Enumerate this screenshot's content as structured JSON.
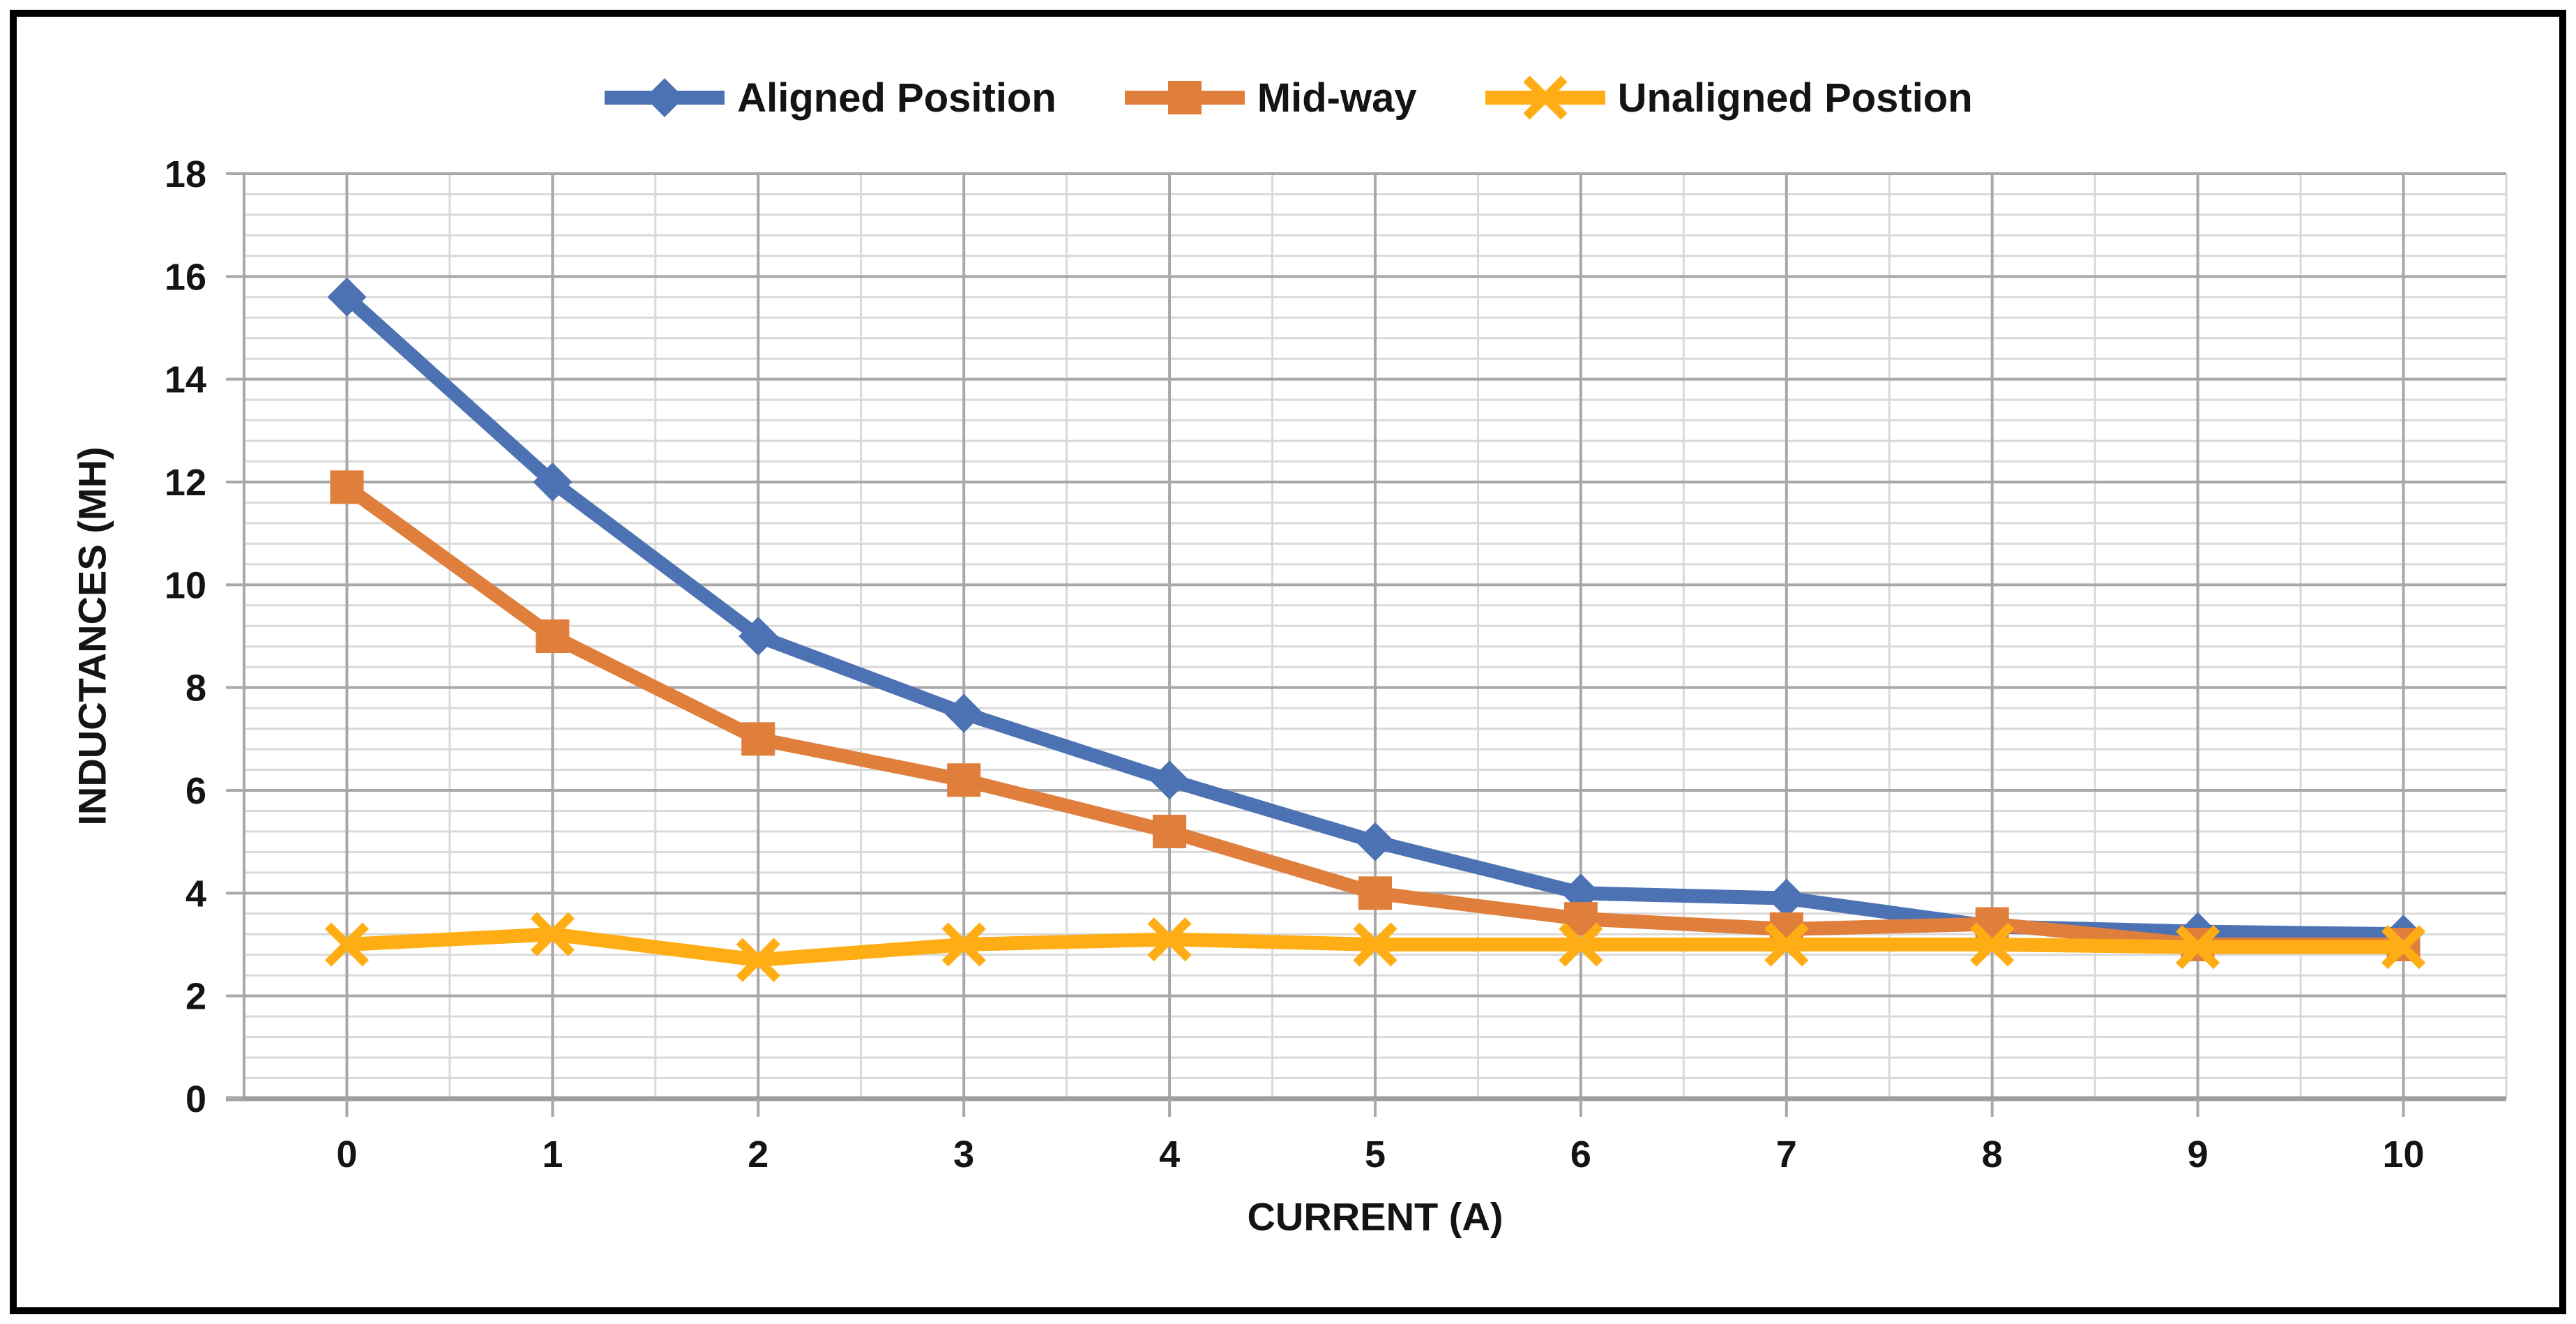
{
  "chart_data": {
    "type": "line",
    "title": "",
    "xlabel": "CURRENT (A)",
    "ylabel": "INDUCTANCES (MH)",
    "x": [
      0,
      1,
      2,
      3,
      4,
      5,
      6,
      7,
      8,
      9,
      10
    ],
    "x_ticks": [
      0,
      1,
      2,
      3,
      4,
      5,
      6,
      7,
      8,
      9,
      10
    ],
    "y_ticks": [
      0,
      2,
      4,
      6,
      8,
      10,
      12,
      14,
      16,
      18
    ],
    "xlim": [
      -0.5,
      10.5
    ],
    "ylim": [
      0,
      18
    ],
    "y_major_unit": 2,
    "y_minor_unit": 0.4,
    "x_major_unit": 1,
    "x_minor_unit": 0.5,
    "grid": "major+minor",
    "legend_position": "top-center",
    "series": [
      {
        "name": "Aligned Position",
        "color": "#4C72B4",
        "marker": "diamond",
        "values": [
          15.6,
          12,
          9,
          7.5,
          6.2,
          5,
          4,
          3.9,
          3.35,
          3.25,
          3.2
        ]
      },
      {
        "name": "Mid-way",
        "color": "#E07E3C",
        "marker": "square",
        "values": [
          11.9,
          9,
          7,
          6.2,
          5.2,
          4,
          3.5,
          3.3,
          3.4,
          3,
          3
        ]
      },
      {
        "name": "Unaligned Postion",
        "color": "#FFAD14",
        "marker": "x",
        "values": [
          3,
          3.2,
          2.7,
          3,
          3.1,
          3,
          3,
          3,
          3,
          2.95,
          2.95
        ]
      }
    ],
    "style": {
      "background": "#FFFFFF",
      "outer_border": "#000000",
      "gridline_major": "#A8A8A8",
      "gridline_minor": "#D9D9D9",
      "axis_line": "#9E9E9E",
      "text_color": "#141414"
    }
  }
}
